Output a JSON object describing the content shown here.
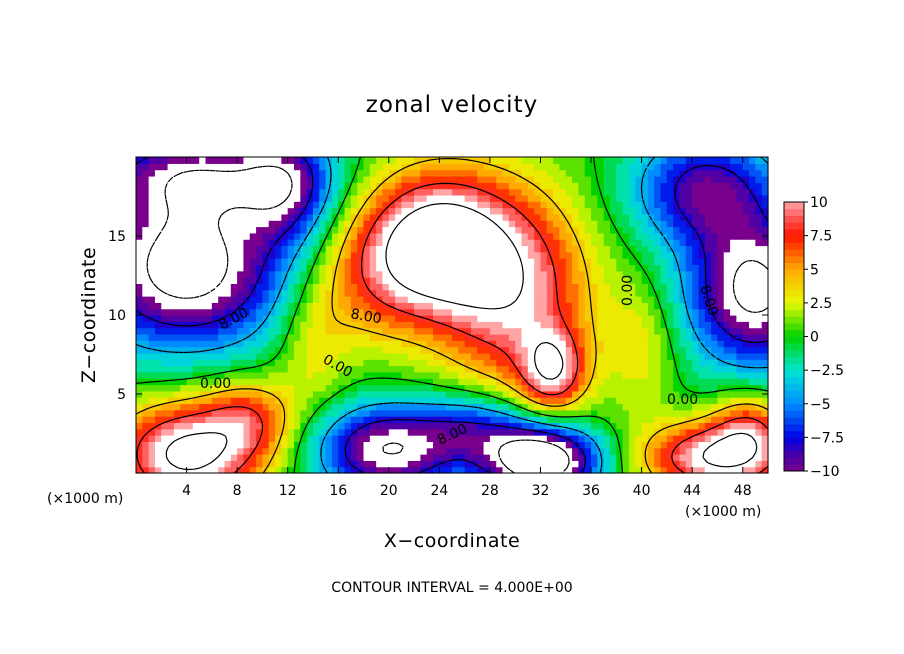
{
  "chart_data": {
    "type": "heatmap",
    "title": "zonal velocity",
    "xlabel": "X−coordinate",
    "ylabel": "Z−coordinate",
    "x_unit_left": "(×1000 m)",
    "x_unit_right": "(×1000 m)",
    "xlim": [
      0,
      50
    ],
    "ylim": [
      0,
      20
    ],
    "x_ticks": [
      4,
      8,
      12,
      16,
      20,
      24,
      28,
      32,
      36,
      40,
      44,
      48
    ],
    "x_tick_labels": [
      "4",
      "8",
      "12",
      "16",
      "20",
      "24",
      "28",
      "32",
      "36",
      "40",
      "44",
      "48"
    ],
    "y_ticks": [
      5,
      10,
      15
    ],
    "y_tick_labels": [
      "5",
      "10",
      "15"
    ],
    "colorbar": {
      "min": -10,
      "max": 10,
      "ticks": [
        10,
        7.5,
        5,
        2.5,
        0,
        -2.5,
        -5,
        -7.5,
        -10
      ],
      "tick_labels": [
        "10",
        "7.5",
        "5",
        "2.5",
        "0",
        "−2.5",
        "−5",
        "−7.5",
        "−10"
      ]
    },
    "contour_labels": [
      "8.00",
      "8.00",
      "8.00",
      "0.00",
      "0.00",
      "0.00",
      "0.00",
      "8.00"
    ],
    "contour_interval_text": "CONTOUR INTERVAL = 4.000E+00",
    "features": [
      {
        "kind": "max",
        "x": 23,
        "z": 14,
        "value": 14
      },
      {
        "kind": "max",
        "x": 30,
        "z": 12,
        "value": 10
      },
      {
        "kind": "max",
        "x": 33,
        "z": 6,
        "value": 12
      },
      {
        "kind": "min",
        "x": 4,
        "z": 12.5,
        "value": -14
      },
      {
        "kind": "min",
        "x": 49,
        "z": 12,
        "value": -13
      },
      {
        "kind": "min",
        "x": 4,
        "z": 19,
        "value": -9
      },
      {
        "kind": "min",
        "x": 20,
        "z": 1.5,
        "value": -12
      },
      {
        "kind": "min",
        "x": 32,
        "z": 1,
        "value": -16
      },
      {
        "kind": "max",
        "x": 4,
        "z": 1.2,
        "value": 13
      },
      {
        "kind": "max",
        "x": 46,
        "z": 1,
        "value": 12
      },
      {
        "kind": "max",
        "x": 8,
        "z": 3.5,
        "value": 6
      },
      {
        "kind": "max",
        "x": 48,
        "z": 3,
        "value": 6
      }
    ]
  }
}
